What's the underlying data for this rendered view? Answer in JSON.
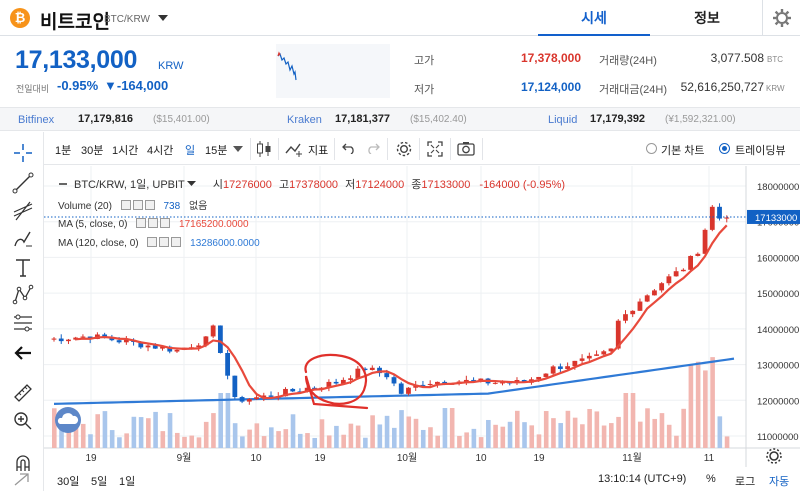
{
  "header": {
    "coin_logo": "₿",
    "coin_name": "비트코인",
    "coin_pair": "BTC/KRW",
    "tab_price": "시세",
    "tab_info": "정보"
  },
  "price": {
    "current": "17,133,000",
    "unit": "KRW",
    "prev_label": "전일대비",
    "change_rate": "-0.95%",
    "change_amount": "▼-164,000"
  },
  "stats": {
    "high_label": "고가",
    "high_value": "17,378,000",
    "low_label": "저가",
    "low_value": "17,124,000",
    "volume_label": "거래량(24H)",
    "volume_value": "3,077.508",
    "volume_unit": "BTC",
    "amount_label": "거래대금(24H)",
    "amount_value": "52,616,250,727",
    "amount_unit": "KRW"
  },
  "exchanges": [
    {
      "name": "Bitfinex",
      "price": "17,179,816",
      "usd": "($15,401.00)"
    },
    {
      "name": "Kraken",
      "price": "17,181,377",
      "usd": "($15,402.40)"
    },
    {
      "name": "Liquid",
      "price": "17,179,392",
      "usd": "(¥1,592,321.00)"
    }
  ],
  "toolbar": {
    "intervals": [
      "1분",
      "30분",
      "1시간",
      "4시간",
      "일",
      "15분"
    ],
    "indicator_label": "지표",
    "basic_chart": "기본 차트",
    "trading_view": "트레이딩뷰"
  },
  "legend": {
    "title": "BTC/KRW, 1일, UPBIT",
    "open_label": "시",
    "open": "17276000",
    "high_label": "고",
    "high": "17378000",
    "low_label": "저",
    "low": "17124000",
    "close_label": "종",
    "close": "17133000",
    "change": "-164000 (-0.95%)",
    "volume_name": "Volume (20)",
    "volume_val": "738",
    "volume_extra": "없음",
    "ma5_name": "MA (5, close, 0)",
    "ma5_val": "17165200.0000",
    "ma120_name": "MA (120, close, 0)",
    "ma120_val": "13286000.0000"
  },
  "chart_data": {
    "type": "candlestick",
    "y_ticks": [
      "18000000",
      "17000000",
      "16000000",
      "15000000",
      "14000000",
      "13000000",
      "12000000",
      "11000000"
    ],
    "current_price_label": "17133000",
    "x_ticks": [
      "19",
      "9월",
      "10",
      "19",
      "10월",
      "10",
      "19",
      "11월",
      "11"
    ]
  },
  "bottom": {
    "ranges": [
      "30일",
      "5일",
      "1일"
    ],
    "clock": "13:10:14 (UTC+9)",
    "percent": "%",
    "log": "로그",
    "auto": "자동"
  },
  "colors": {
    "up": "#d9352c",
    "down": "#1261c4",
    "ma5": "#e84a3c",
    "ma120": "#2f7ad6",
    "annotation": "#e0302b"
  }
}
